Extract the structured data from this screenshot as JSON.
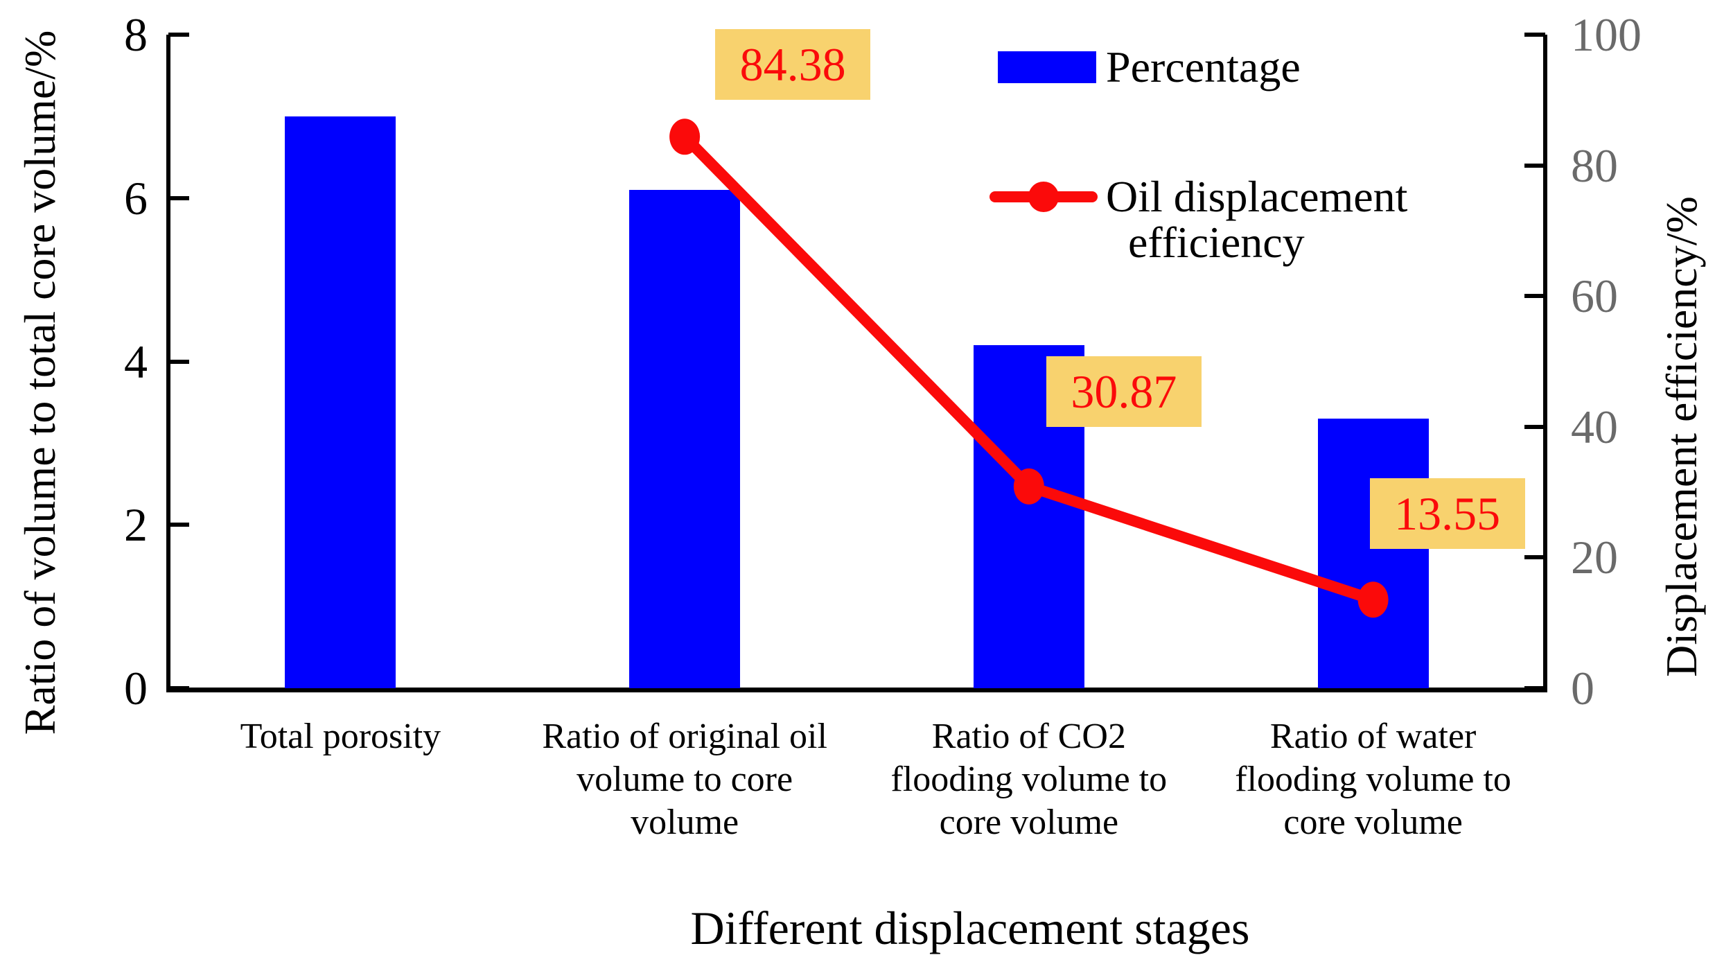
{
  "chart_data": {
    "type": "bar",
    "title": "",
    "xlabel": "Different displacement stages",
    "ylabel_left": "Ratio of volume to total core volume/%",
    "ylabel_right": "Displacement efficiency/%",
    "ylim_left": [
      0,
      8
    ],
    "yticks_left": [
      "0",
      "2",
      "4",
      "6",
      "8"
    ],
    "ylim_right": [
      0,
      100
    ],
    "yticks_right": [
      "0",
      "20",
      "40",
      "60",
      "80",
      "100"
    ],
    "grid": false,
    "legend_position": "upper right",
    "categories": [
      [
        "Total porosity"
      ],
      [
        "Ratio of original oil",
        "volume to core",
        "volume"
      ],
      [
        "Ratio of CO2",
        "flooding volume to",
        "core volume"
      ],
      [
        "Ratio of water",
        "flooding volume to",
        "core volume"
      ]
    ],
    "series": [
      {
        "name": "Percentage",
        "kind": "bar",
        "axis": "left",
        "color": "#0000fe",
        "values": [
          7.0,
          6.1,
          4.2,
          3.3
        ]
      },
      {
        "name": "Oil displacement efficiency",
        "kind": "line",
        "axis": "right",
        "color": "#fb0a0a",
        "values": [
          null,
          84.38,
          30.87,
          13.55
        ],
        "point_labels": [
          null,
          "84.38",
          "30.87",
          "13.55"
        ]
      }
    ],
    "legend": {
      "items": [
        {
          "label": "Percentage",
          "swatch": "bar",
          "color": "#0000fe"
        },
        {
          "label_lines": [
            "Oil displacement",
            "efficiency"
          ],
          "swatch": "line-marker",
          "color": "#fb0a0a"
        }
      ]
    },
    "colors": {
      "bar_blue": "#0000fe",
      "line_red": "#fb0a0a",
      "label_box_bg": "#f8d26e",
      "label_box_text": "#fb0a0a",
      "right_tick_gray": "#6a6a6a",
      "axis_black": "#000000"
    }
  }
}
